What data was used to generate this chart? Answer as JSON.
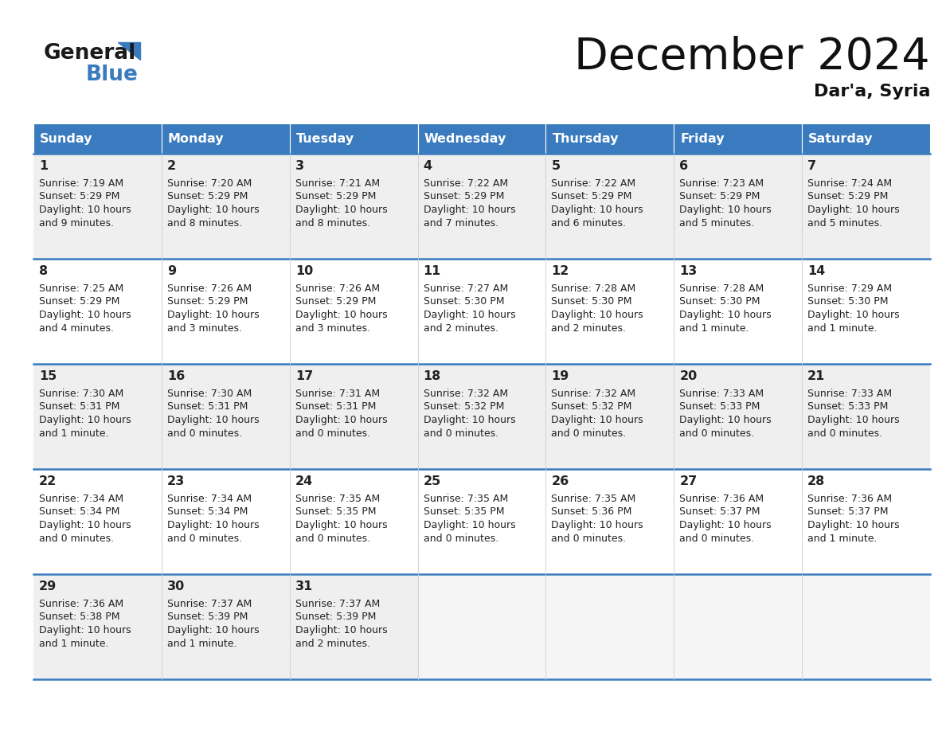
{
  "title": "December 2024",
  "subtitle": "Dar'a, Syria",
  "header_color": "#3a7bbf",
  "header_text_color": "#ffffff",
  "row_line_color": "#3a7bbf",
  "text_color": "#222222",
  "cell_bg_light": "#efefef",
  "cell_bg_white": "#ffffff",
  "days_of_week": [
    "Sunday",
    "Monday",
    "Tuesday",
    "Wednesday",
    "Thursday",
    "Friday",
    "Saturday"
  ],
  "weeks": [
    [
      {
        "day": "1",
        "sunrise": "7:19 AM",
        "sunset": "5:29 PM",
        "daylight1": "Daylight: 10 hours",
        "daylight2": "and 9 minutes."
      },
      {
        "day": "2",
        "sunrise": "7:20 AM",
        "sunset": "5:29 PM",
        "daylight1": "Daylight: 10 hours",
        "daylight2": "and 8 minutes."
      },
      {
        "day": "3",
        "sunrise": "7:21 AM",
        "sunset": "5:29 PM",
        "daylight1": "Daylight: 10 hours",
        "daylight2": "and 8 minutes."
      },
      {
        "day": "4",
        "sunrise": "7:22 AM",
        "sunset": "5:29 PM",
        "daylight1": "Daylight: 10 hours",
        "daylight2": "and 7 minutes."
      },
      {
        "day": "5",
        "sunrise": "7:22 AM",
        "sunset": "5:29 PM",
        "daylight1": "Daylight: 10 hours",
        "daylight2": "and 6 minutes."
      },
      {
        "day": "6",
        "sunrise": "7:23 AM",
        "sunset": "5:29 PM",
        "daylight1": "Daylight: 10 hours",
        "daylight2": "and 5 minutes."
      },
      {
        "day": "7",
        "sunrise": "7:24 AM",
        "sunset": "5:29 PM",
        "daylight1": "Daylight: 10 hours",
        "daylight2": "and 5 minutes."
      }
    ],
    [
      {
        "day": "8",
        "sunrise": "7:25 AM",
        "sunset": "5:29 PM",
        "daylight1": "Daylight: 10 hours",
        "daylight2": "and 4 minutes."
      },
      {
        "day": "9",
        "sunrise": "7:26 AM",
        "sunset": "5:29 PM",
        "daylight1": "Daylight: 10 hours",
        "daylight2": "and 3 minutes."
      },
      {
        "day": "10",
        "sunrise": "7:26 AM",
        "sunset": "5:29 PM",
        "daylight1": "Daylight: 10 hours",
        "daylight2": "and 3 minutes."
      },
      {
        "day": "11",
        "sunrise": "7:27 AM",
        "sunset": "5:30 PM",
        "daylight1": "Daylight: 10 hours",
        "daylight2": "and 2 minutes."
      },
      {
        "day": "12",
        "sunrise": "7:28 AM",
        "sunset": "5:30 PM",
        "daylight1": "Daylight: 10 hours",
        "daylight2": "and 2 minutes."
      },
      {
        "day": "13",
        "sunrise": "7:28 AM",
        "sunset": "5:30 PM",
        "daylight1": "Daylight: 10 hours",
        "daylight2": "and 1 minute."
      },
      {
        "day": "14",
        "sunrise": "7:29 AM",
        "sunset": "5:30 PM",
        "daylight1": "Daylight: 10 hours",
        "daylight2": "and 1 minute."
      }
    ],
    [
      {
        "day": "15",
        "sunrise": "7:30 AM",
        "sunset": "5:31 PM",
        "daylight1": "Daylight: 10 hours",
        "daylight2": "and 1 minute."
      },
      {
        "day": "16",
        "sunrise": "7:30 AM",
        "sunset": "5:31 PM",
        "daylight1": "Daylight: 10 hours",
        "daylight2": "and 0 minutes."
      },
      {
        "day": "17",
        "sunrise": "7:31 AM",
        "sunset": "5:31 PM",
        "daylight1": "Daylight: 10 hours",
        "daylight2": "and 0 minutes."
      },
      {
        "day": "18",
        "sunrise": "7:32 AM",
        "sunset": "5:32 PM",
        "daylight1": "Daylight: 10 hours",
        "daylight2": "and 0 minutes."
      },
      {
        "day": "19",
        "sunrise": "7:32 AM",
        "sunset": "5:32 PM",
        "daylight1": "Daylight: 10 hours",
        "daylight2": "and 0 minutes."
      },
      {
        "day": "20",
        "sunrise": "7:33 AM",
        "sunset": "5:33 PM",
        "daylight1": "Daylight: 10 hours",
        "daylight2": "and 0 minutes."
      },
      {
        "day": "21",
        "sunrise": "7:33 AM",
        "sunset": "5:33 PM",
        "daylight1": "Daylight: 10 hours",
        "daylight2": "and 0 minutes."
      }
    ],
    [
      {
        "day": "22",
        "sunrise": "7:34 AM",
        "sunset": "5:34 PM",
        "daylight1": "Daylight: 10 hours",
        "daylight2": "and 0 minutes."
      },
      {
        "day": "23",
        "sunrise": "7:34 AM",
        "sunset": "5:34 PM",
        "daylight1": "Daylight: 10 hours",
        "daylight2": "and 0 minutes."
      },
      {
        "day": "24",
        "sunrise": "7:35 AM",
        "sunset": "5:35 PM",
        "daylight1": "Daylight: 10 hours",
        "daylight2": "and 0 minutes."
      },
      {
        "day": "25",
        "sunrise": "7:35 AM",
        "sunset": "5:35 PM",
        "daylight1": "Daylight: 10 hours",
        "daylight2": "and 0 minutes."
      },
      {
        "day": "26",
        "sunrise": "7:35 AM",
        "sunset": "5:36 PM",
        "daylight1": "Daylight: 10 hours",
        "daylight2": "and 0 minutes."
      },
      {
        "day": "27",
        "sunrise": "7:36 AM",
        "sunset": "5:37 PM",
        "daylight1": "Daylight: 10 hours",
        "daylight2": "and 0 minutes."
      },
      {
        "day": "28",
        "sunrise": "7:36 AM",
        "sunset": "5:37 PM",
        "daylight1": "Daylight: 10 hours",
        "daylight2": "and 1 minute."
      }
    ],
    [
      {
        "day": "29",
        "sunrise": "7:36 AM",
        "sunset": "5:38 PM",
        "daylight1": "Daylight: 10 hours",
        "daylight2": "and 1 minute."
      },
      {
        "day": "30",
        "sunrise": "7:37 AM",
        "sunset": "5:39 PM",
        "daylight1": "Daylight: 10 hours",
        "daylight2": "and 1 minute."
      },
      {
        "day": "31",
        "sunrise": "7:37 AM",
        "sunset": "5:39 PM",
        "daylight1": "Daylight: 10 hours",
        "daylight2": "and 2 minutes."
      },
      null,
      null,
      null,
      null
    ]
  ]
}
